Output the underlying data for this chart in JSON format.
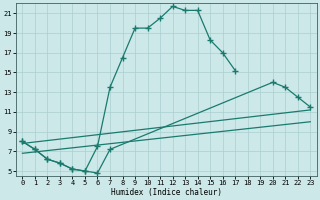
{
  "xlabel": "Humidex (Indice chaleur)",
  "bg_color": "#cce8e8",
  "grid_color": "#aacfcf",
  "line_color": "#1a7a6e",
  "xlim": [
    -0.5,
    23.5
  ],
  "ylim": [
    4.5,
    22
  ],
  "xticks": [
    0,
    1,
    2,
    3,
    4,
    5,
    6,
    7,
    8,
    9,
    10,
    11,
    12,
    13,
    14,
    15,
    16,
    17,
    18,
    19,
    20,
    21,
    22,
    23
  ],
  "yticks": [
    5,
    7,
    9,
    11,
    13,
    15,
    17,
    19,
    21
  ],
  "main_x": [
    0,
    1,
    2,
    3,
    4,
    5,
    6,
    7,
    8,
    9,
    10,
    11,
    12,
    13,
    14,
    15,
    16,
    17
  ],
  "main_y": [
    8.0,
    7.2,
    6.2,
    5.8,
    5.2,
    5.0,
    7.5,
    13.5,
    16.5,
    19.5,
    19.5,
    20.5,
    21.7,
    21.3,
    21.3,
    18.3,
    17.0,
    15.2
  ],
  "curve2_x": [
    0,
    1,
    2,
    3,
    4,
    5,
    6,
    7,
    20,
    21,
    22,
    23
  ],
  "curve2_y": [
    8.0,
    7.2,
    6.2,
    5.8,
    5.2,
    5.0,
    4.8,
    7.2,
    14.0,
    13.5,
    12.5,
    11.5
  ],
  "line3_x": [
    0,
    23
  ],
  "line3_y": [
    7.8,
    11.2
  ],
  "line4_x": [
    0,
    23
  ],
  "line4_y": [
    6.8,
    10.0
  ]
}
